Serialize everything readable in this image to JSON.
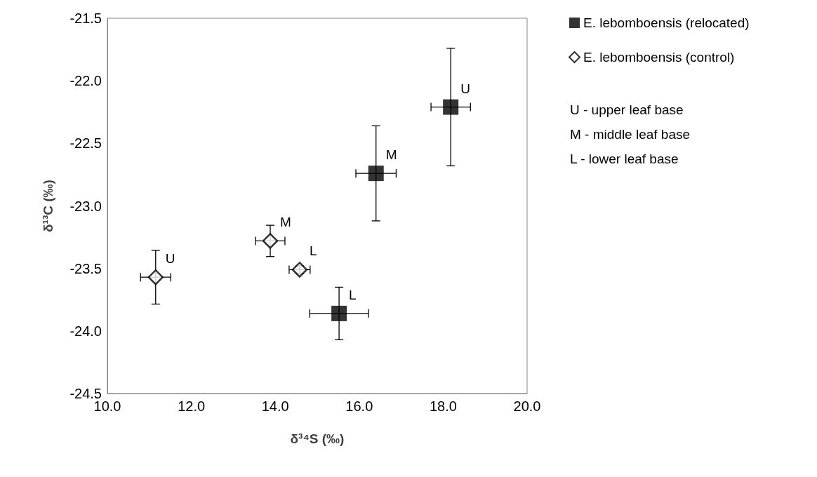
{
  "chart_data": {
    "type": "scatter",
    "xlabel": "δ³⁴S (‰)",
    "ylabel": "δ¹³C (‰)",
    "xlim": [
      10,
      20
    ],
    "xticks": [
      {
        "value": 10,
        "label": "10.0"
      },
      {
        "value": 12,
        "label": "12.0"
      },
      {
        "value": 14,
        "label": "14.0"
      },
      {
        "value": 16,
        "label": "16.0"
      },
      {
        "value": 18,
        "label": "18.0"
      },
      {
        "value": 20,
        "label": "20.0"
      }
    ],
    "ylim": [
      -24.5,
      -21.5
    ],
    "yticks": [
      {
        "value": -24.5,
        "label": "-24.5"
      },
      {
        "value": -24,
        "label": "-24.0"
      },
      {
        "value": -23.5,
        "label": "-23.5"
      },
      {
        "value": -23,
        "label": "-23.0"
      },
      {
        "value": -22.5,
        "label": "-22.5"
      },
      {
        "value": -22,
        "label": "-22.0"
      },
      {
        "value": -21.5,
        "label": "-21.5"
      }
    ],
    "grid": false,
    "legend": "top right",
    "series": [
      {
        "name": "E. lebomboensis (relocated)",
        "color": "#000000",
        "marker": "square",
        "x": [
          18.18,
          16.4,
          15.52
        ],
        "values": [
          -22.21,
          -22.74,
          -23.86
        ],
        "errors": [
          0.47,
          0.38,
          0.21
        ],
        "xerrors": [
          0.47,
          0.48,
          0.7
        ]
      },
      {
        "name": "E. lebomboensis (control)",
        "color": "#000000",
        "marker": "diamond",
        "x": [
          11.15,
          13.88,
          14.58
        ],
        "values": [
          -23.57,
          -23.28,
          -23.51
        ],
        "errors": [
          0.215,
          0.125,
          0.03
        ],
        "xerrors": [
          0.36,
          0.35,
          0.25
        ]
      }
    ],
    "annotations": [
      {
        "text": "U",
        "x": 18.18,
        "y": -22.21
      },
      {
        "text": "M",
        "x": 16.4,
        "y": -22.74
      },
      {
        "text": "L",
        "x": 15.52,
        "y": -23.86
      },
      {
        "text": "U",
        "x": 11.15,
        "y": -23.57
      },
      {
        "text": "M",
        "x": 13.88,
        "y": -23.28
      },
      {
        "text": "L",
        "x": 14.58,
        "y": -23.51
      },
      "U - upper leaf base",
      "M - middle leaf base",
      "L - lower leaf base"
    ]
  }
}
